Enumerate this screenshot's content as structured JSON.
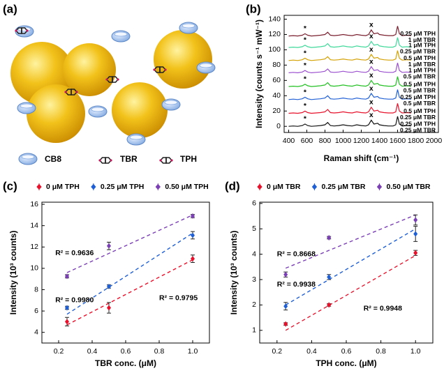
{
  "panel_a": {
    "label": "(a)",
    "legend": [
      "CB8",
      "TBR",
      "TPH"
    ]
  },
  "chart_data": [
    {
      "type": "line",
      "panel_label": "(b)",
      "x_label": "Raman shift (cm⁻¹)",
      "y_label": "Intensity (counts s⁻¹ mW⁻¹)",
      "xlim": [
        350,
        2050
      ],
      "xticks": [
        400,
        600,
        800,
        1000,
        1200,
        1400,
        1600,
        1800,
        2000
      ],
      "ylim": [
        -8,
        145
      ],
      "yticks": [
        0,
        20,
        40,
        60,
        80,
        100,
        120,
        140
      ],
      "x": [
        400,
        450,
        500,
        550,
        580,
        610,
        650,
        700,
        750,
        800,
        830,
        860,
        900,
        950,
        1000,
        1050,
        1100,
        1150,
        1200,
        1250,
        1280,
        1310,
        1340,
        1380,
        1400,
        1450,
        1500,
        1550,
        1580,
        1600,
        1620,
        1650,
        1700,
        1750
      ],
      "annotations": [
        {
          "text": "*",
          "x": 580
        },
        {
          "text": "x",
          "x": 1310
        }
      ],
      "series": [
        {
          "labels": [
            "0.25 μM TPH",
            "0.25 μM TBR"
          ],
          "color": "#111111",
          "values": [
            0,
            0.5,
            0,
            1,
            3,
            1,
            0,
            0.5,
            1,
            2,
            5,
            1,
            0.5,
            1,
            2,
            1,
            0.5,
            2,
            1,
            0.5,
            2,
            8,
            3,
            4,
            2,
            1,
            0.5,
            0.5,
            2,
            13,
            3,
            0.5,
            1,
            0.5
          ]
        },
        {
          "labels": [
            "0.5 μM TPH",
            "0.25 μM TBR"
          ],
          "color": "#e8102a",
          "values": [
            17,
            17.5,
            17,
            18,
            20,
            18,
            17,
            17.5,
            18,
            19,
            22,
            18,
            17.5,
            18,
            19,
            18,
            17.5,
            19,
            18,
            17.5,
            19,
            25,
            20,
            21,
            19,
            18,
            17.5,
            17.5,
            19,
            30,
            20,
            17.5,
            18,
            17.5
          ]
        },
        {
          "labels": [
            "0.25 μM TPH",
            "0.5 μM TBR"
          ],
          "color": "#1f5fd6",
          "values": [
            35,
            35.5,
            35,
            36,
            38,
            36,
            35,
            35.5,
            36,
            37,
            40,
            36,
            35.5,
            36,
            37,
            36,
            35.5,
            37,
            36,
            35.5,
            37,
            43,
            38,
            39,
            37,
            36,
            35.5,
            35.5,
            37,
            48,
            38,
            35.5,
            36,
            35.5
          ]
        },
        {
          "labels": [
            "0.5 μM TPH",
            "0.5 μM TBR"
          ],
          "color": "#22c022",
          "values": [
            52,
            52.5,
            52,
            53,
            55,
            53,
            52,
            52.5,
            53,
            54,
            57,
            53,
            52.5,
            53,
            54,
            53,
            52.5,
            54,
            53,
            52.5,
            54,
            60,
            55,
            56,
            54,
            53,
            52.5,
            52.5,
            54,
            65,
            55,
            52.5,
            53,
            52.5
          ]
        },
        {
          "labels": [
            "1 μM TPH",
            "0.5 μM TBR"
          ],
          "color": "#9b4fcf",
          "values": [
            70,
            70.5,
            70,
            71,
            73,
            71,
            70,
            70.5,
            71,
            72,
            75,
            71,
            70.5,
            71,
            72,
            71,
            70.5,
            72,
            71,
            70.5,
            72,
            78,
            73,
            74,
            72,
            71,
            70.5,
            70.5,
            72,
            83,
            73,
            70.5,
            71,
            70.5
          ]
        },
        {
          "labels": [
            "0.5 μM TPH",
            "1 μM TBR"
          ],
          "color": "#d4a000",
          "values": [
            86,
            86.5,
            86,
            87,
            89,
            87,
            86,
            86.5,
            87,
            88,
            91,
            87,
            86.5,
            87,
            88,
            87,
            86.5,
            88,
            87,
            86.5,
            88,
            94,
            89,
            90,
            88,
            87,
            86.5,
            86.5,
            88,
            99,
            89,
            86.5,
            87,
            86.5
          ]
        },
        {
          "labels": [
            "1 μM TPH",
            "0.25 μM TBR"
          ],
          "color": "#3fd99a",
          "values": [
            103,
            103.5,
            103,
            104,
            106,
            104,
            103,
            103.5,
            104,
            105,
            108,
            104,
            103.5,
            104,
            105,
            104,
            103.5,
            105,
            104,
            103.5,
            105,
            111,
            106,
            107,
            105,
            104,
            103.5,
            103.5,
            105,
            116,
            106,
            103.5,
            104,
            103.5
          ]
        },
        {
          "labels": [
            "0.25 μM TPH",
            "1 μM TBR"
          ],
          "color": "#7a1f2e",
          "values": [
            118,
            118.5,
            118,
            119,
            121,
            119,
            118,
            118.5,
            119,
            120,
            123,
            119,
            118.5,
            119,
            120,
            119,
            118.5,
            120,
            119,
            118.5,
            120,
            126,
            121,
            122,
            120,
            119,
            118.5,
            118.5,
            120,
            131,
            121,
            118.5,
            119,
            118.5
          ]
        }
      ]
    },
    {
      "type": "scatter",
      "panel_label": "(c)",
      "x_label": "TBR conc. (μM)",
      "y_label": "Intensity (10³ counts)",
      "xlim": [
        0.1,
        1.1
      ],
      "xticks": [
        0.2,
        0.4,
        0.6,
        0.8,
        {
          "value": 1,
          "label": "1.0"
        }
      ],
      "ylim": [
        3,
        16.2
      ],
      "yticks": [
        4,
        6,
        8,
        10,
        12,
        14,
        16
      ],
      "x": [
        0.25,
        0.5,
        1
      ],
      "series": [
        {
          "name": "0 μM TPH",
          "color": "#e8102a",
          "values": [
            5.0,
            6.3,
            10.9
          ],
          "errors": [
            0.4,
            0.5,
            0.35
          ],
          "fit": [
            4.7,
            10.8
          ],
          "fit_label": {
            "text": "R² = 0.9795",
            "x": 0.8,
            "y": 7.2
          }
        },
        {
          "name": "0.25 μM TPH",
          "color": "#1f5fd6",
          "values": [
            6.3,
            8.3,
            13.1
          ],
          "errors": [
            0.15,
            0.15,
            0.35
          ],
          "fit": [
            5.7,
            13.3
          ],
          "fit_label": {
            "text": "R² = 0.9980",
            "x": 0.18,
            "y": 7.0
          }
        },
        {
          "name": "0.50 μM TPH",
          "color": "#7b3fb5",
          "values": [
            9.25,
            12.1,
            14.9
          ],
          "errors": [
            0.15,
            0.35,
            0.15
          ],
          "fit": [
            9.6,
            15.0
          ],
          "fit_label": {
            "text": "R² = 0.9636",
            "x": 0.18,
            "y": 11.4
          }
        }
      ]
    },
    {
      "type": "scatter",
      "panel_label": "(d)",
      "x_label": "TPH conc. (μM)",
      "y_label": "Intensity (10³ counts)",
      "xlim": [
        0.1,
        1.1
      ],
      "xticks": [
        0.2,
        0.4,
        0.6,
        0.8,
        {
          "value": 1,
          "label": "1.0"
        }
      ],
      "ylim": [
        0.5,
        6.05
      ],
      "yticks": [
        1,
        2,
        3,
        4,
        5,
        6
      ],
      "x": [
        0.25,
        0.5,
        1
      ],
      "series": [
        {
          "name": "0 μM TBR",
          "color": "#e8102a",
          "values": [
            1.25,
            2.0,
            4.05
          ],
          "errors": [
            0.05,
            0.05,
            0.1
          ],
          "fit": [
            1.0,
            3.95
          ],
          "fit_label": {
            "text": "R² = 0.9948",
            "x": 0.7,
            "y": 1.85
          }
        },
        {
          "name": "0.25 μM TBR",
          "color": "#1f5fd6",
          "values": [
            1.95,
            3.1,
            4.8
          ],
          "errors": [
            0.15,
            0.1,
            0.3
          ],
          "fit": [
            2.0,
            5.0
          ],
          "fit_label": {
            "text": "R² = 0.9938",
            "x": 0.2,
            "y": 2.8
          }
        },
        {
          "name": "0.50 μM TBR",
          "color": "#7b3fb5",
          "values": [
            3.2,
            4.65,
            5.35
          ],
          "errors": [
            0.1,
            0.05,
            0.2
          ],
          "fit": [
            3.45,
            5.55
          ],
          "fit_label": {
            "text": "R² = 0.8668",
            "x": 0.2,
            "y": 4.0
          }
        }
      ]
    }
  ]
}
